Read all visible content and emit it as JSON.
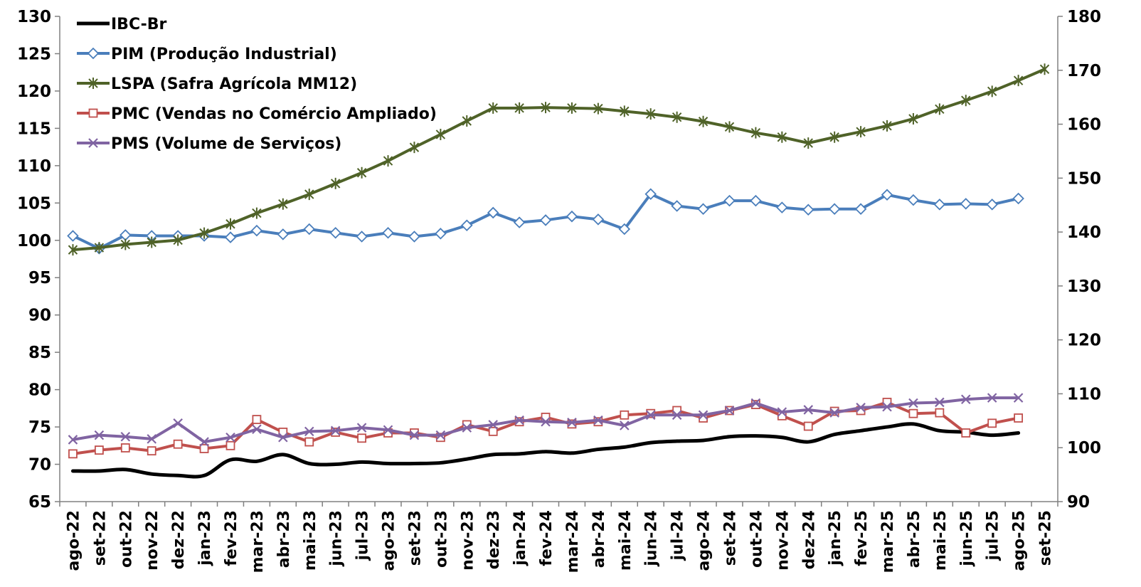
{
  "chart_data": {
    "type": "line",
    "categories": [
      "ago-22",
      "set-22",
      "out-22",
      "nov-22",
      "dez-22",
      "jan-23",
      "fev-23",
      "mar-23",
      "abr-23",
      "mai-23",
      "jun-23",
      "jul-23",
      "ago-23",
      "set-23",
      "out-23",
      "nov-23",
      "dez-23",
      "jan-24",
      "fev-24",
      "mar-24",
      "abr-24",
      "mai-24",
      "jun-24",
      "jul-24",
      "ago-24",
      "set-24",
      "out-24",
      "nov-24",
      "dez-24",
      "jan-25",
      "fev-25",
      "mar-25",
      "abr-25",
      "mai-25",
      "jun-25",
      "jul-25",
      "ago-25",
      "set-25"
    ],
    "y_left": {
      "min": 65,
      "max": 130,
      "step": 5
    },
    "y_right": {
      "min": 90,
      "max": 180,
      "step": 10
    },
    "grid": false,
    "legend_position": "top-left",
    "series": [
      {
        "name": "IBC-Br",
        "axis": "left",
        "color": "#000000",
        "marker": "none",
        "smooth": true,
        "values": [
          69.1,
          69.1,
          69.3,
          68.7,
          68.5,
          68.5,
          70.6,
          70.4,
          71.3,
          70.1,
          70.0,
          70.3,
          70.1,
          70.1,
          70.2,
          70.7,
          71.3,
          71.4,
          71.7,
          71.5,
          72.0,
          72.3,
          72.9,
          73.1,
          73.2,
          73.7,
          73.8,
          73.6,
          73.0,
          74.0,
          74.5,
          75.0,
          75.4,
          74.5,
          74.3,
          73.9,
          74.2,
          null
        ]
      },
      {
        "name": "PIM (Produção Industrial)",
        "axis": "left",
        "color": "#4A7EBB",
        "marker": "diamond",
        "smooth": false,
        "values": [
          100.6,
          98.9,
          100.7,
          100.6,
          100.6,
          100.6,
          100.4,
          101.3,
          100.8,
          101.5,
          101.0,
          100.5,
          101.0,
          100.5,
          100.9,
          102.0,
          103.7,
          102.4,
          102.7,
          103.2,
          102.8,
          101.5,
          106.2,
          104.6,
          104.2,
          105.3,
          105.3,
          104.4,
          104.1,
          104.2,
          104.2,
          106.1,
          105.4,
          104.8,
          104.9,
          104.8,
          105.6,
          null
        ]
      },
      {
        "name": "LSPA (Safra Agrícola MM12)",
        "axis": "right",
        "color": "#4F6228",
        "marker": "star",
        "smooth": false,
        "values": [
          136.7,
          137.1,
          137.7,
          138.1,
          138.5,
          139.8,
          141.5,
          143.5,
          145.2,
          147.0,
          149.0,
          151.0,
          153.2,
          155.7,
          158.1,
          160.6,
          163.0,
          163.0,
          163.1,
          163.0,
          162.9,
          162.4,
          161.9,
          161.3,
          160.5,
          159.5,
          158.4,
          157.6,
          156.5,
          157.6,
          158.6,
          159.7,
          161.0,
          162.8,
          164.4,
          166.1,
          168.1,
          170.2
        ]
      },
      {
        "name": "PMC (Vendas no Comércio Ampliado)",
        "axis": "left",
        "color": "#C0504D",
        "marker": "square",
        "smooth": false,
        "values": [
          71.4,
          71.9,
          72.2,
          71.8,
          72.7,
          72.1,
          72.5,
          76.0,
          74.3,
          73.0,
          74.3,
          73.5,
          74.2,
          74.2,
          73.6,
          75.3,
          74.4,
          75.7,
          76.3,
          75.4,
          75.7,
          76.6,
          76.8,
          77.2,
          76.2,
          77.2,
          78.0,
          76.5,
          75.1,
          77.1,
          77.2,
          78.3,
          76.8,
          76.9,
          74.2,
          75.5,
          76.2,
          null
        ]
      },
      {
        "name": "PMS (Volume de Serviços)",
        "axis": "left",
        "color": "#8064A2",
        "marker": "x",
        "smooth": false,
        "values": [
          73.3,
          73.9,
          73.7,
          73.4,
          75.5,
          73.0,
          73.6,
          74.7,
          73.6,
          74.4,
          74.5,
          74.9,
          74.6,
          73.9,
          73.9,
          74.9,
          75.3,
          75.9,
          75.7,
          75.6,
          75.9,
          75.2,
          76.6,
          76.6,
          76.6,
          77.2,
          78.2,
          77.0,
          77.3,
          76.9,
          77.6,
          77.7,
          78.2,
          78.3,
          78.7,
          78.9,
          78.9,
          null
        ]
      }
    ]
  }
}
